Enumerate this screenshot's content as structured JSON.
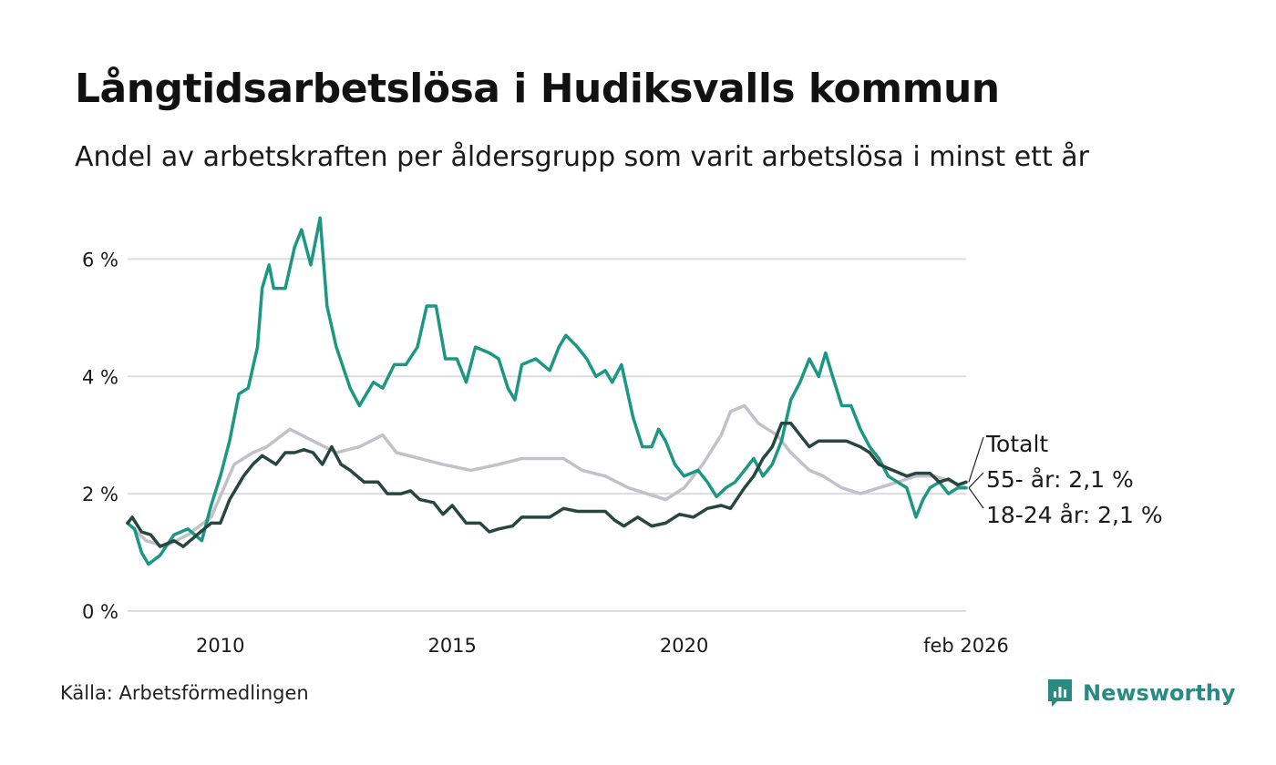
{
  "title": "Långtidsarbetslösa i Hudiksvalls kommun",
  "subtitle": "Andel av arbetskraften per åldersgrupp som varit arbetslösa i minst ett år",
  "source": "Källa: Arbetsförmedlingen",
  "brand": "Newsworthy",
  "colors": {
    "youth": "#1b9784",
    "old": "#c3bfcb",
    "total": "#26463f",
    "grid": "#dcdcdc",
    "brand": "#2a8a82"
  },
  "chart_data": {
    "type": "line",
    "title": "Långtidsarbetslösa i Hudiksvalls kommun",
    "xlabel": "",
    "ylabel": "",
    "xlim": [
      2008.0,
      2026.08
    ],
    "ylim": [
      0,
      7
    ],
    "y_ticks": [
      0,
      2,
      4,
      6
    ],
    "y_tick_labels": [
      "0 %",
      "2 %",
      "4 %",
      "6 %"
    ],
    "x_ticks": [
      2010,
      2015,
      2020,
      2026.08
    ],
    "x_tick_labels": [
      "2010",
      "2015",
      "2020",
      "feb 2026"
    ],
    "series": [
      {
        "name": "55- år",
        "label": "55- år: 2,1 %",
        "color": "#c3bfcb",
        "points": [
          [
            2008.0,
            1.5
          ],
          [
            2008.4,
            1.2
          ],
          [
            2008.8,
            1.1
          ],
          [
            2009.3,
            1.3
          ],
          [
            2009.8,
            1.6
          ],
          [
            2010.3,
            2.5
          ],
          [
            2010.7,
            2.7
          ],
          [
            2011.0,
            2.8
          ],
          [
            2011.5,
            3.1
          ],
          [
            2012.0,
            2.9
          ],
          [
            2012.5,
            2.7
          ],
          [
            2013.0,
            2.8
          ],
          [
            2013.5,
            3.0
          ],
          [
            2013.8,
            2.7
          ],
          [
            2014.3,
            2.6
          ],
          [
            2014.8,
            2.5
          ],
          [
            2015.4,
            2.4
          ],
          [
            2016.0,
            2.5
          ],
          [
            2016.5,
            2.6
          ],
          [
            2017.0,
            2.6
          ],
          [
            2017.4,
            2.6
          ],
          [
            2017.8,
            2.4
          ],
          [
            2018.3,
            2.3
          ],
          [
            2018.8,
            2.1
          ],
          [
            2019.2,
            2.0
          ],
          [
            2019.6,
            1.9
          ],
          [
            2020.0,
            2.1
          ],
          [
            2020.4,
            2.5
          ],
          [
            2020.8,
            3.0
          ],
          [
            2021.0,
            3.4
          ],
          [
            2021.3,
            3.5
          ],
          [
            2021.6,
            3.2
          ],
          [
            2022.0,
            3.0
          ],
          [
            2022.3,
            2.7
          ],
          [
            2022.7,
            2.4
          ],
          [
            2023.0,
            2.3
          ],
          [
            2023.4,
            2.1
          ],
          [
            2023.8,
            2.0
          ],
          [
            2024.2,
            2.1
          ],
          [
            2024.6,
            2.2
          ],
          [
            2025.0,
            2.3
          ],
          [
            2025.4,
            2.3
          ],
          [
            2025.8,
            2.2
          ],
          [
            2026.08,
            2.1
          ]
        ]
      },
      {
        "name": "18-24 år",
        "label": "18-24 år: 2,1 %",
        "color": "#1b9784",
        "points": [
          [
            2008.0,
            1.5
          ],
          [
            2008.15,
            1.4
          ],
          [
            2008.3,
            1.0
          ],
          [
            2008.45,
            0.8
          ],
          [
            2008.7,
            0.95
          ],
          [
            2009.0,
            1.3
          ],
          [
            2009.3,
            1.4
          ],
          [
            2009.6,
            1.2
          ],
          [
            2009.8,
            1.8
          ],
          [
            2010.0,
            2.3
          ],
          [
            2010.2,
            2.9
          ],
          [
            2010.4,
            3.7
          ],
          [
            2010.6,
            3.8
          ],
          [
            2010.8,
            4.5
          ],
          [
            2010.9,
            5.5
          ],
          [
            2011.05,
            5.9
          ],
          [
            2011.15,
            5.5
          ],
          [
            2011.4,
            5.5
          ],
          [
            2011.6,
            6.2
          ],
          [
            2011.75,
            6.5
          ],
          [
            2011.95,
            5.9
          ],
          [
            2012.15,
            6.7
          ],
          [
            2012.3,
            5.2
          ],
          [
            2012.5,
            4.5
          ],
          [
            2012.8,
            3.8
          ],
          [
            2013.0,
            3.5
          ],
          [
            2013.3,
            3.9
          ],
          [
            2013.5,
            3.8
          ],
          [
            2013.75,
            4.2
          ],
          [
            2014.0,
            4.2
          ],
          [
            2014.25,
            4.5
          ],
          [
            2014.45,
            5.2
          ],
          [
            2014.65,
            5.2
          ],
          [
            2014.85,
            4.3
          ],
          [
            2015.1,
            4.3
          ],
          [
            2015.3,
            3.9
          ],
          [
            2015.5,
            4.5
          ],
          [
            2015.8,
            4.4
          ],
          [
            2016.0,
            4.3
          ],
          [
            2016.2,
            3.8
          ],
          [
            2016.35,
            3.6
          ],
          [
            2016.5,
            4.2
          ],
          [
            2016.8,
            4.3
          ],
          [
            2017.1,
            4.1
          ],
          [
            2017.3,
            4.5
          ],
          [
            2017.45,
            4.7
          ],
          [
            2017.7,
            4.5
          ],
          [
            2017.9,
            4.3
          ],
          [
            2018.1,
            4.0
          ],
          [
            2018.3,
            4.1
          ],
          [
            2018.45,
            3.9
          ],
          [
            2018.65,
            4.2
          ],
          [
            2018.9,
            3.3
          ],
          [
            2019.1,
            2.8
          ],
          [
            2019.3,
            2.8
          ],
          [
            2019.45,
            3.1
          ],
          [
            2019.6,
            2.9
          ],
          [
            2019.8,
            2.5
          ],
          [
            2020.0,
            2.3
          ],
          [
            2020.3,
            2.4
          ],
          [
            2020.5,
            2.2
          ],
          [
            2020.7,
            1.95
          ],
          [
            2020.9,
            2.1
          ],
          [
            2021.1,
            2.2
          ],
          [
            2021.3,
            2.4
          ],
          [
            2021.5,
            2.6
          ],
          [
            2021.7,
            2.3
          ],
          [
            2021.9,
            2.5
          ],
          [
            2022.1,
            2.9
          ],
          [
            2022.3,
            3.6
          ],
          [
            2022.5,
            3.9
          ],
          [
            2022.7,
            4.3
          ],
          [
            2022.9,
            4.0
          ],
          [
            2023.05,
            4.4
          ],
          [
            2023.2,
            4.0
          ],
          [
            2023.4,
            3.5
          ],
          [
            2023.6,
            3.5
          ],
          [
            2023.8,
            3.1
          ],
          [
            2024.0,
            2.8
          ],
          [
            2024.2,
            2.6
          ],
          [
            2024.4,
            2.3
          ],
          [
            2024.6,
            2.2
          ],
          [
            2024.8,
            2.1
          ],
          [
            2025.0,
            1.6
          ],
          [
            2025.15,
            1.9
          ],
          [
            2025.3,
            2.1
          ],
          [
            2025.5,
            2.2
          ],
          [
            2025.7,
            2.0
          ],
          [
            2025.9,
            2.1
          ],
          [
            2026.08,
            2.1
          ]
        ]
      },
      {
        "name": "Totalt",
        "label": "Totalt",
        "color": "#26463f",
        "points": [
          [
            2008.0,
            1.5
          ],
          [
            2008.1,
            1.6
          ],
          [
            2008.3,
            1.35
          ],
          [
            2008.5,
            1.3
          ],
          [
            2008.7,
            1.1
          ],
          [
            2009.0,
            1.2
          ],
          [
            2009.2,
            1.1
          ],
          [
            2009.5,
            1.3
          ],
          [
            2009.8,
            1.5
          ],
          [
            2010.0,
            1.5
          ],
          [
            2010.2,
            1.9
          ],
          [
            2010.5,
            2.3
          ],
          [
            2010.7,
            2.5
          ],
          [
            2010.9,
            2.65
          ],
          [
            2011.2,
            2.5
          ],
          [
            2011.4,
            2.7
          ],
          [
            2011.6,
            2.7
          ],
          [
            2011.8,
            2.75
          ],
          [
            2012.0,
            2.7
          ],
          [
            2012.2,
            2.5
          ],
          [
            2012.4,
            2.8
          ],
          [
            2012.6,
            2.5
          ],
          [
            2012.8,
            2.4
          ],
          [
            2013.1,
            2.2
          ],
          [
            2013.4,
            2.2
          ],
          [
            2013.6,
            2.0
          ],
          [
            2013.9,
            2.0
          ],
          [
            2014.1,
            2.05
          ],
          [
            2014.3,
            1.9
          ],
          [
            2014.6,
            1.85
          ],
          [
            2014.8,
            1.65
          ],
          [
            2015.0,
            1.8
          ],
          [
            2015.3,
            1.5
          ],
          [
            2015.6,
            1.5
          ],
          [
            2015.8,
            1.35
          ],
          [
            2016.0,
            1.4
          ],
          [
            2016.3,
            1.45
          ],
          [
            2016.5,
            1.6
          ],
          [
            2016.8,
            1.6
          ],
          [
            2017.1,
            1.6
          ],
          [
            2017.4,
            1.75
          ],
          [
            2017.7,
            1.7
          ],
          [
            2018.0,
            1.7
          ],
          [
            2018.3,
            1.7
          ],
          [
            2018.5,
            1.55
          ],
          [
            2018.7,
            1.45
          ],
          [
            2019.0,
            1.6
          ],
          [
            2019.3,
            1.45
          ],
          [
            2019.6,
            1.5
          ],
          [
            2019.9,
            1.65
          ],
          [
            2020.2,
            1.6
          ],
          [
            2020.5,
            1.75
          ],
          [
            2020.8,
            1.8
          ],
          [
            2021.0,
            1.75
          ],
          [
            2021.3,
            2.1
          ],
          [
            2021.5,
            2.3
          ],
          [
            2021.7,
            2.6
          ],
          [
            2021.9,
            2.8
          ],
          [
            2022.1,
            3.2
          ],
          [
            2022.3,
            3.2
          ],
          [
            2022.5,
            3.0
          ],
          [
            2022.7,
            2.8
          ],
          [
            2022.9,
            2.9
          ],
          [
            2023.2,
            2.9
          ],
          [
            2023.5,
            2.9
          ],
          [
            2023.8,
            2.8
          ],
          [
            2024.0,
            2.7
          ],
          [
            2024.2,
            2.5
          ],
          [
            2024.5,
            2.4
          ],
          [
            2024.8,
            2.3
          ],
          [
            2025.0,
            2.35
          ],
          [
            2025.3,
            2.35
          ],
          [
            2025.5,
            2.2
          ],
          [
            2025.7,
            2.25
          ],
          [
            2025.9,
            2.15
          ],
          [
            2026.08,
            2.2
          ]
        ]
      }
    ],
    "annotations": [
      {
        "series": "Totalt",
        "text": "Totalt"
      },
      {
        "series": "55- år",
        "text": "55- år: 2,1 %"
      },
      {
        "series": "18-24 år",
        "text": "18-24 år: 2,1 %"
      }
    ]
  }
}
